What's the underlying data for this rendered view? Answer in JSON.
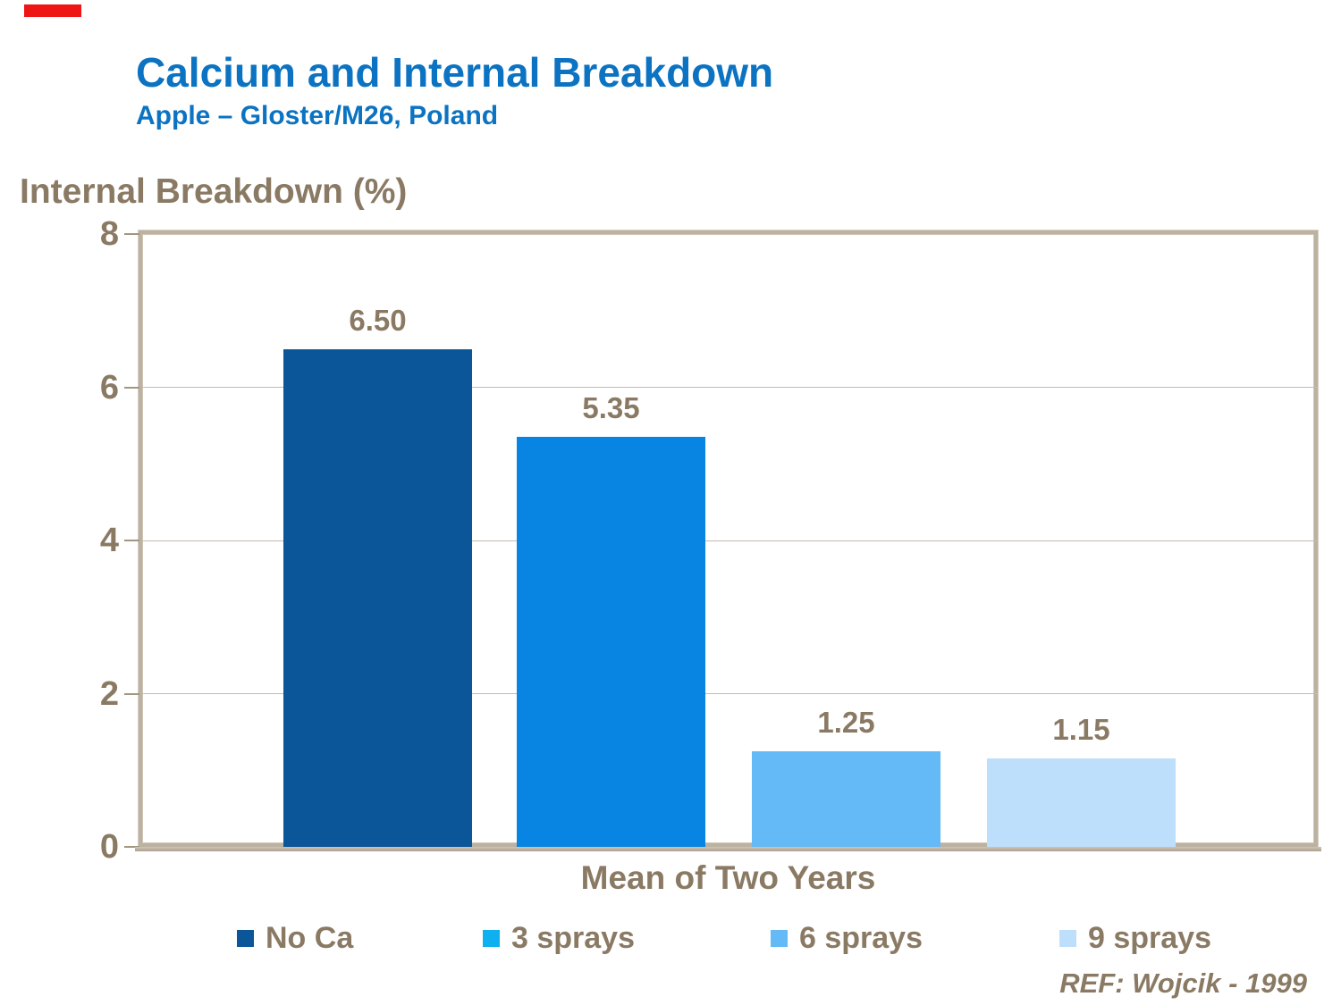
{
  "slide": {
    "title": "Calcium and Internal Breakdown",
    "subtitle": "Apple – Gloster/M26, Poland",
    "reference": "REF: Wojcik - 1999"
  },
  "chart_data": {
    "type": "bar",
    "title": "",
    "ylabel": "Internal Breakdown (%)",
    "xlabel": "Mean of Two Years",
    "categories": [
      "Mean of Two Years"
    ],
    "series": [
      {
        "name": "No Ca",
        "values": [
          6.5
        ],
        "label": "6.50",
        "color": "#0a5699",
        "legend_color": "#0a5699"
      },
      {
        "name": "3 sprays",
        "values": [
          5.35
        ],
        "label": "5.35",
        "color": "#0885e3",
        "legend_color": "#0fb0f0"
      },
      {
        "name": "6 sprays",
        "values": [
          1.25
        ],
        "label": "1.25",
        "color": "#63baf7",
        "legend_color": "#63baf7"
      },
      {
        "name": "9 sprays",
        "values": [
          1.15
        ],
        "label": "1.15",
        "color": "#bedffc",
        "legend_color": "#bedffc"
      }
    ],
    "ylim": [
      0,
      8
    ],
    "yticks": [
      0,
      2,
      4,
      6,
      8
    ],
    "grid": true,
    "legend_position": "bottom"
  },
  "colors": {
    "accent_blue": "#0b73c2",
    "text_taupe": "#8a7a64",
    "axis_line": "#bcb2a2",
    "gridline": "#c4bbac",
    "marker_red": "#ee1515"
  }
}
